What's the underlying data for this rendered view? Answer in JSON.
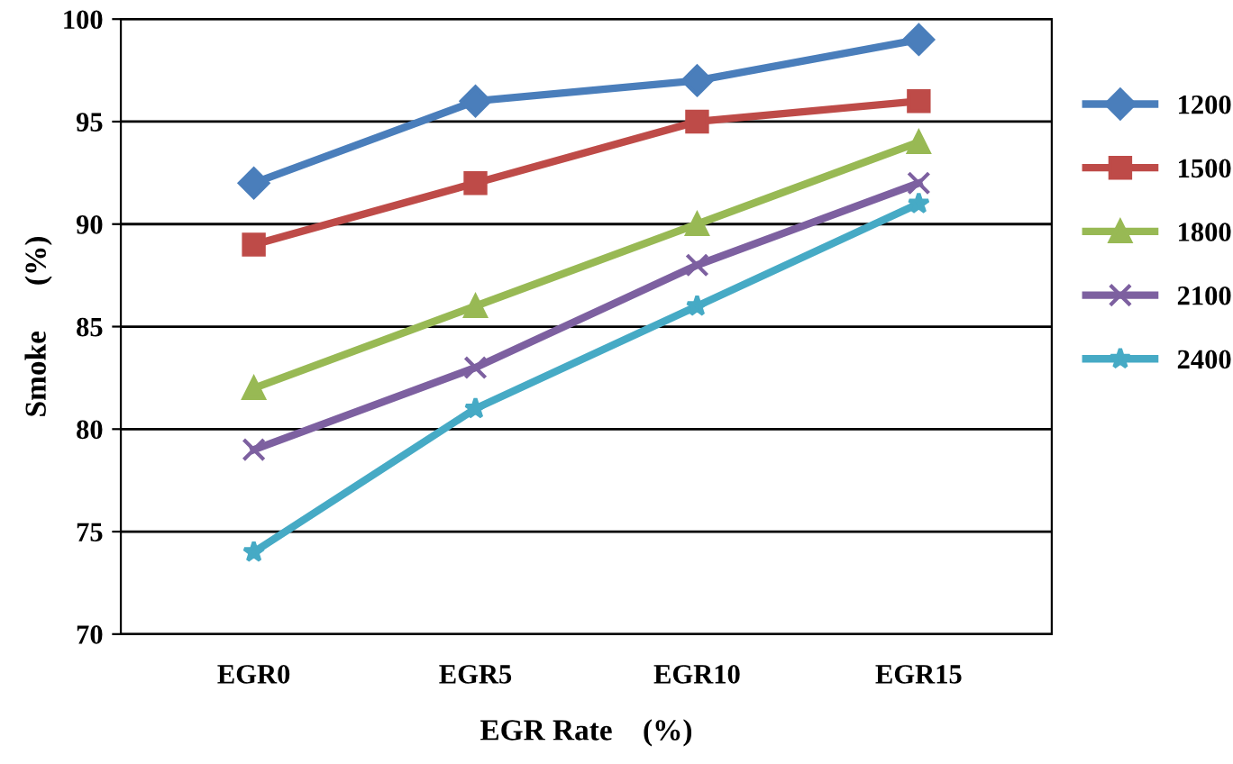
{
  "chart_data": {
    "type": "line",
    "xlabel": "EGR Rate    (%)",
    "ylabel": "Smoke      (%)",
    "categories": [
      "EGR0",
      "EGR5",
      "EGR10",
      "EGR15"
    ],
    "series": [
      {
        "name": "1200",
        "color": "#4a7ebb",
        "marker": "diamond",
        "values": [
          92,
          96,
          97,
          99
        ]
      },
      {
        "name": "1500",
        "color": "#be4b48",
        "marker": "square",
        "values": [
          89,
          92,
          95,
          96
        ]
      },
      {
        "name": "1800",
        "color": "#98b954",
        "marker": "triangle",
        "values": [
          82,
          86,
          90,
          94
        ]
      },
      {
        "name": "2100",
        "color": "#7d60a0",
        "marker": "cross",
        "values": [
          79,
          83,
          88,
          92
        ]
      },
      {
        "name": "2400",
        "color": "#46aac5",
        "marker": "star",
        "values": [
          74,
          81,
          86,
          91
        ]
      }
    ],
    "ylim": [
      70,
      100
    ],
    "yticks": [
      70,
      75,
      80,
      85,
      90,
      95,
      100
    ],
    "grid": "y",
    "legend": "right",
    "line_style": "solid"
  }
}
